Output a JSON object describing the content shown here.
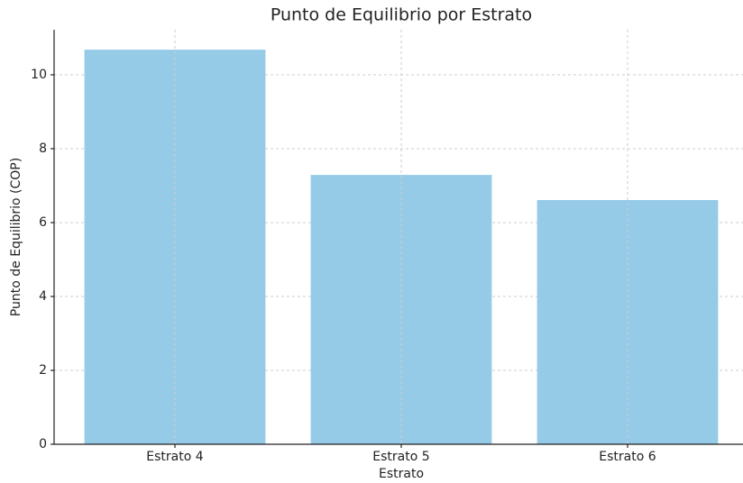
{
  "chart_data": {
    "type": "bar",
    "title": "Punto de Equilibrio por Estrato",
    "xlabel": "Estrato",
    "ylabel": "Punto de Equilibrio (COP)",
    "categories": [
      "Estrato 4",
      "Estrato 5",
      "Estrato 6"
    ],
    "values": [
      10.68,
      7.29,
      6.61
    ],
    "color": "#96cbe8",
    "ylim": [
      0,
      11.22
    ],
    "yticks": [
      0,
      2,
      4,
      6,
      8,
      10
    ],
    "grid": true
  }
}
